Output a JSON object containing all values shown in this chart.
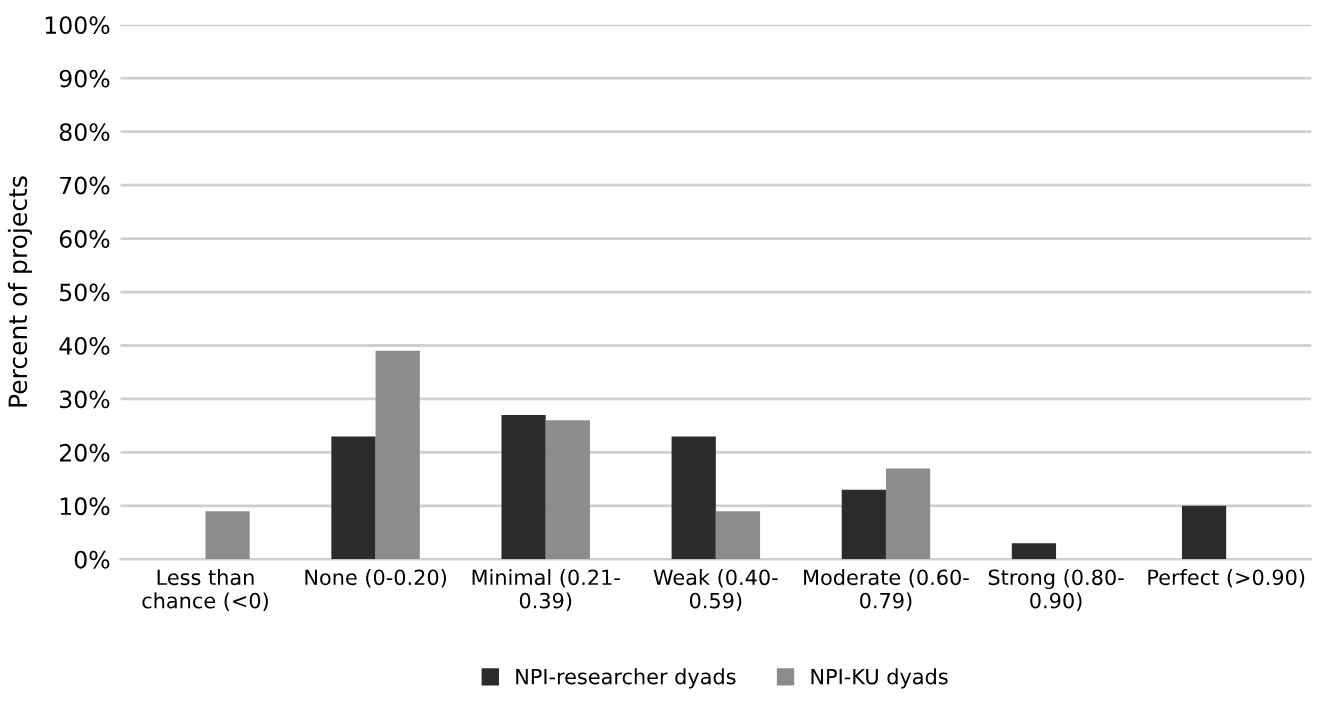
{
  "chart_data": {
    "type": "bar",
    "ylabel": "Percent of projects",
    "categories": [
      "Less than chance (<0)",
      "None (0-0.20)",
      "Minimal (0.21-0.39)",
      "Weak (0.40-0.59)",
      "Moderate (0.60-0.79)",
      "Strong (0.80-0.90)",
      "Perfect (>0.90)"
    ],
    "series": [
      {
        "name": "NPI-researcher dyads",
        "color": "#2b2b2b",
        "values": [
          0,
          23,
          27,
          23,
          13,
          3,
          10
        ]
      },
      {
        "name": "NPI-KU dyads",
        "color": "#8c8c8c",
        "values": [
          9,
          39,
          26,
          9,
          17,
          0,
          0
        ]
      }
    ],
    "ylim": [
      0,
      100
    ],
    "yticks": [
      {
        "value": 0,
        "label": "0%"
      },
      {
        "value": 10,
        "label": "10%"
      },
      {
        "value": 20,
        "label": "20%"
      },
      {
        "value": 30,
        "label": "30%"
      },
      {
        "value": 40,
        "label": "40%"
      },
      {
        "value": 50,
        "label": "50%"
      },
      {
        "value": 60,
        "label": "60%"
      },
      {
        "value": 70,
        "label": "70%"
      },
      {
        "value": 80,
        "label": "80%"
      },
      {
        "value": 90,
        "label": "90%"
      },
      {
        "value": 100,
        "label": "100%"
      }
    ],
    "grid": "y",
    "legend": "bottom"
  }
}
